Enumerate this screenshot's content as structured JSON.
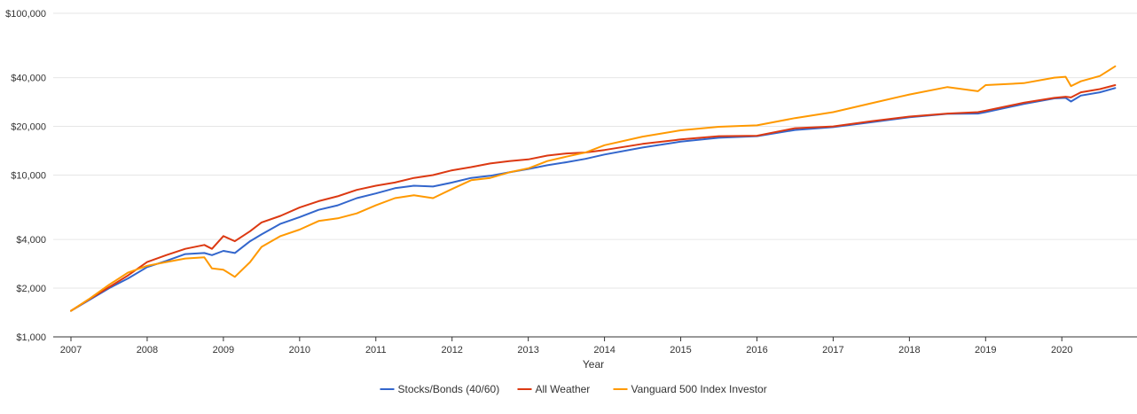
{
  "chart_data": {
    "type": "line",
    "xlabel": "Year",
    "ylabel": "",
    "yscale": "log",
    "ylim": [
      1000,
      100000
    ],
    "xlim": [
      2007,
      2020.8
    ],
    "y_ticks": [
      1000,
      2000,
      4000,
      10000,
      20000,
      40000,
      100000
    ],
    "y_tick_labels": [
      "$1,000",
      "$2,000",
      "$4,000",
      "$10,000",
      "$20,000",
      "$40,000",
      "$100,000"
    ],
    "x_ticks": [
      2007,
      2008,
      2009,
      2010,
      2011,
      2012,
      2013,
      2014,
      2015,
      2016,
      2017,
      2018,
      2019,
      2020
    ],
    "x_tick_labels": [
      "2007",
      "2008",
      "2009",
      "2010",
      "2011",
      "2012",
      "2013",
      "2014",
      "2015",
      "2016",
      "2017",
      "2018",
      "2019",
      "2020"
    ],
    "grid": true,
    "legend_position": "bottom",
    "series": [
      {
        "name": "Stocks/Bonds (40/60)",
        "color": "#3366cc",
        "x": [
          2007,
          2007.25,
          2007.5,
          2007.75,
          2008,
          2008.25,
          2008.5,
          2008.75,
          2008.85,
          2009,
          2009.15,
          2009.35,
          2009.5,
          2009.75,
          2010,
          2010.25,
          2010.5,
          2010.75,
          2011,
          2011.25,
          2011.5,
          2011.75,
          2012,
          2012.25,
          2012.5,
          2012.75,
          2013,
          2013.25,
          2013.5,
          2013.75,
          2014,
          2014.5,
          2015,
          2015.5,
          2016,
          2016.5,
          2017,
          2017.5,
          2018,
          2018.5,
          2018.9,
          2019,
          2019.5,
          2019.9,
          2020.05,
          2020.12,
          2020.25,
          2020.5,
          2020.7
        ],
        "values": [
          1450,
          1700,
          2000,
          2300,
          2700,
          2950,
          3250,
          3300,
          3200,
          3400,
          3300,
          3900,
          4300,
          5000,
          5500,
          6100,
          6500,
          7200,
          7700,
          8300,
          8600,
          8500,
          9000,
          9600,
          9900,
          10400,
          10900,
          11500,
          12000,
          12600,
          13400,
          14800,
          16100,
          17000,
          17400,
          19000,
          19800,
          21200,
          22800,
          23900,
          24000,
          24500,
          27500,
          29800,
          30000,
          28500,
          31000,
          32500,
          34500
        ]
      },
      {
        "name": "All Weather",
        "color": "#dc3912",
        "x": [
          2007,
          2007.25,
          2007.5,
          2007.75,
          2008,
          2008.25,
          2008.5,
          2008.75,
          2008.85,
          2009,
          2009.15,
          2009.35,
          2009.5,
          2009.75,
          2010,
          2010.25,
          2010.5,
          2010.75,
          2011,
          2011.25,
          2011.5,
          2011.75,
          2012,
          2012.25,
          2012.5,
          2012.75,
          2013,
          2013.25,
          2013.5,
          2013.75,
          2014,
          2014.5,
          2015,
          2015.5,
          2016,
          2016.5,
          2017,
          2017.5,
          2018,
          2018.5,
          2018.9,
          2019,
          2019.5,
          2019.9,
          2020.05,
          2020.12,
          2020.25,
          2020.5,
          2020.7
        ],
        "values": [
          1450,
          1720,
          2030,
          2400,
          2900,
          3200,
          3500,
          3700,
          3500,
          4200,
          3900,
          4500,
          5100,
          5600,
          6300,
          6900,
          7400,
          8100,
          8600,
          9000,
          9600,
          10000,
          10700,
          11200,
          11800,
          12200,
          12500,
          13200,
          13600,
          13800,
          14300,
          15600,
          16600,
          17400,
          17500,
          19500,
          20000,
          21500,
          23000,
          24000,
          24500,
          25000,
          28000,
          30000,
          30500,
          30200,
          32500,
          34000,
          36000
        ]
      },
      {
        "name": "Vanguard 500 Index Investor",
        "color": "#ff9900",
        "x": [
          2007,
          2007.25,
          2007.5,
          2007.75,
          2008,
          2008.25,
          2008.5,
          2008.75,
          2008.85,
          2009,
          2009.15,
          2009.35,
          2009.5,
          2009.75,
          2010,
          2010.25,
          2010.5,
          2010.75,
          2011,
          2011.25,
          2011.5,
          2011.75,
          2012,
          2012.25,
          2012.5,
          2012.75,
          2013,
          2013.25,
          2013.5,
          2013.75,
          2014,
          2014.5,
          2015,
          2015.5,
          2016,
          2016.5,
          2017,
          2017.5,
          2018,
          2018.5,
          2018.9,
          2019,
          2019.5,
          2019.9,
          2020.05,
          2020.12,
          2020.25,
          2020.5,
          2020.7
        ],
        "values": [
          1450,
          1730,
          2100,
          2500,
          2750,
          2900,
          3050,
          3100,
          2650,
          2600,
          2350,
          2900,
          3600,
          4200,
          4600,
          5200,
          5400,
          5800,
          6500,
          7200,
          7500,
          7200,
          8200,
          9300,
          9600,
          10400,
          11000,
          12200,
          13000,
          13800,
          15300,
          17300,
          18900,
          19900,
          20300,
          22500,
          24500,
          27800,
          31500,
          35000,
          33000,
          36000,
          37000,
          40000,
          40500,
          35500,
          38000,
          41000,
          47000
        ]
      }
    ]
  }
}
